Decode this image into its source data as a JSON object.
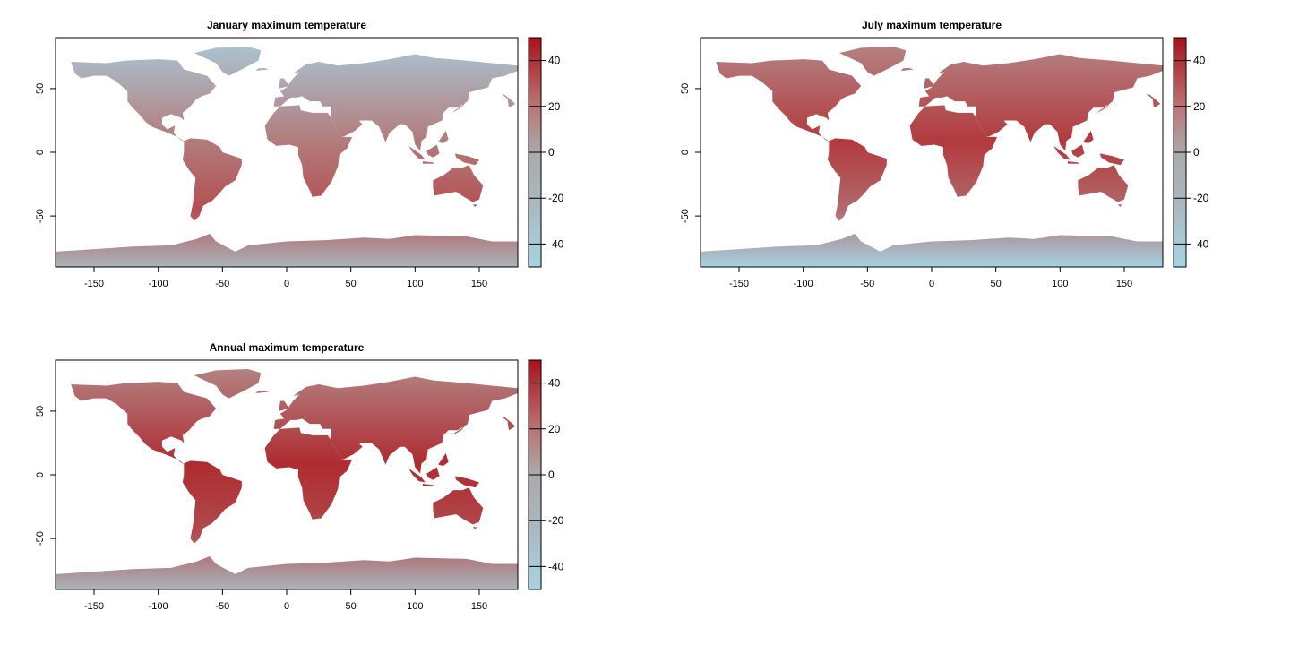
{
  "panels": [
    {
      "id": "january",
      "title": "January maximum temperature",
      "x_ticks": [
        -150,
        -100,
        -50,
        0,
        50,
        100,
        150
      ],
      "y_ticks": [
        50,
        0,
        -50
      ],
      "colorbar_ticks": [
        40,
        20,
        0,
        -20,
        -40
      ]
    },
    {
      "id": "july",
      "title": "July maximum temperature",
      "x_ticks": [
        -150,
        -100,
        -50,
        0,
        50,
        100,
        150
      ],
      "y_ticks": [
        50,
        0,
        -50
      ],
      "colorbar_ticks": [
        40,
        20,
        0,
        -20,
        -40
      ]
    },
    {
      "id": "annual",
      "title": "Annual maximum temperature",
      "x_ticks": [
        -150,
        -100,
        -50,
        0,
        50,
        100,
        150
      ],
      "y_ticks": [
        50,
        0,
        -50
      ],
      "colorbar_ticks": [
        40,
        20,
        0,
        -20,
        -40
      ]
    }
  ],
  "map": {
    "xlim": [
      -180,
      180
    ],
    "ylim": [
      -90,
      90
    ],
    "colorbar_range": [
      -50,
      50
    ],
    "colors": {
      "low": "#a6d3e3",
      "mid": "#aaaaaa",
      "high": "#a8121c"
    }
  },
  "chart_data": [
    {
      "type": "heatmap",
      "title": "January maximum temperature",
      "x_range": [
        -180,
        180
      ],
      "y_range": [
        -90,
        90
      ],
      "color_scale": [
        -50,
        50
      ],
      "legend_ticks": [
        40,
        20,
        0,
        -20,
        -40
      ]
    },
    {
      "type": "heatmap",
      "title": "July maximum temperature",
      "x_range": [
        -180,
        180
      ],
      "y_range": [
        -90,
        90
      ],
      "color_scale": [
        -50,
        50
      ],
      "legend_ticks": [
        40,
        20,
        0,
        -20,
        -40
      ]
    },
    {
      "type": "heatmap",
      "title": "Annual maximum temperature",
      "x_range": [
        -180,
        180
      ],
      "y_range": [
        -90,
        90
      ],
      "color_scale": [
        -50,
        50
      ],
      "legend_ticks": [
        40,
        20,
        0,
        -20,
        -40
      ]
    }
  ]
}
